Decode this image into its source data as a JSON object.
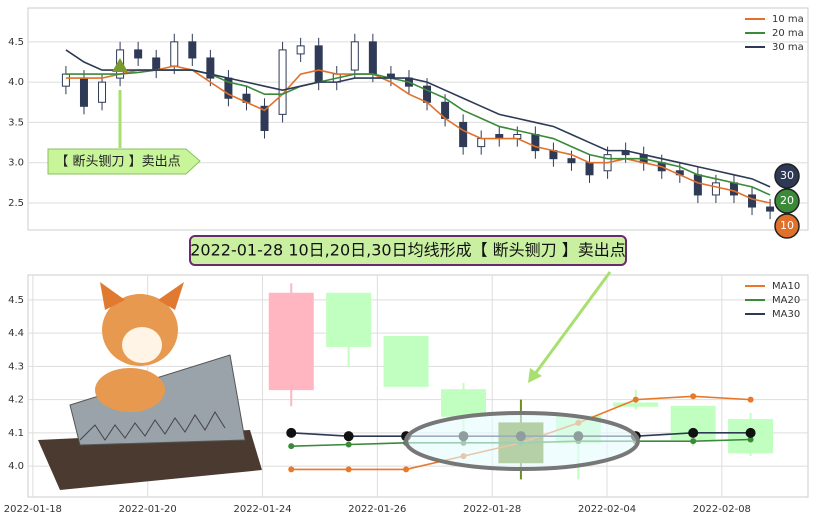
{
  "chart_data": [
    {
      "type": "candlestick",
      "x": [
        0,
        1,
        2,
        3,
        4,
        5,
        6,
        7,
        8,
        9,
        10,
        11,
        12,
        13,
        14,
        15,
        16,
        17,
        18,
        19,
        20,
        21,
        22,
        23,
        24,
        25,
        26,
        27,
        28,
        29,
        30,
        31,
        32,
        33,
        34,
        35,
        36,
        37,
        38,
        39
      ],
      "open": [
        3.95,
        4.05,
        3.75,
        4.05,
        4.4,
        4.3,
        4.2,
        4.5,
        4.3,
        4.05,
        3.85,
        3.7,
        3.6,
        4.35,
        4.45,
        4.0,
        4.15,
        4.5,
        4.1,
        4.05,
        3.95,
        3.75,
        3.5,
        3.2,
        3.35,
        3.3,
        3.35,
        3.15,
        3.05,
        3.0,
        2.9,
        3.15,
        3.1,
        3.0,
        2.9,
        2.85,
        2.6,
        2.75,
        2.6,
        2.45
      ],
      "high": [
        4.2,
        4.15,
        4.1,
        4.5,
        4.5,
        4.4,
        4.6,
        4.6,
        4.4,
        4.15,
        3.95,
        3.8,
        4.5,
        4.55,
        4.55,
        4.2,
        4.6,
        4.6,
        4.2,
        4.15,
        4.05,
        3.85,
        3.6,
        3.4,
        3.45,
        3.45,
        3.45,
        3.25,
        3.15,
        3.1,
        3.2,
        3.25,
        3.2,
        3.1,
        3.0,
        2.95,
        2.85,
        2.85,
        2.7,
        2.55
      ],
      "low": [
        3.85,
        3.6,
        3.65,
        3.95,
        4.2,
        4.05,
        4.1,
        4.2,
        3.95,
        3.7,
        3.65,
        3.3,
        3.5,
        4.25,
        3.9,
        3.9,
        4.05,
        4.0,
        3.95,
        3.85,
        3.65,
        3.45,
        3.1,
        3.1,
        3.2,
        3.2,
        3.05,
        2.95,
        2.9,
        2.75,
        2.8,
        3.0,
        2.9,
        2.8,
        2.75,
        2.5,
        2.5,
        2.5,
        2.35,
        2.3
      ],
      "close": [
        4.1,
        3.7,
        4.0,
        4.4,
        4.3,
        4.15,
        4.5,
        4.3,
        4.05,
        3.8,
        3.75,
        3.4,
        4.4,
        4.45,
        4.0,
        4.1,
        4.5,
        4.1,
        4.05,
        3.95,
        3.75,
        3.55,
        3.2,
        3.3,
        3.3,
        3.35,
        3.15,
        3.05,
        3.0,
        2.85,
        3.1,
        3.1,
        3.0,
        2.9,
        2.85,
        2.6,
        2.75,
        2.6,
        2.45,
        2.4
      ],
      "up_color": "#ffffff",
      "down_color": "#2f3a56",
      "series": [
        {
          "name": "10 ma",
          "color": "#e0702a",
          "values": [
            4.05,
            4.05,
            4.05,
            4.1,
            4.15,
            4.15,
            4.2,
            4.15,
            4.0,
            3.85,
            3.75,
            3.65,
            3.85,
            4.1,
            4.15,
            4.1,
            4.1,
            4.1,
            4.0,
            3.85,
            3.75,
            3.55,
            3.4,
            3.3,
            3.3,
            3.3,
            3.2,
            3.15,
            3.1,
            3.0,
            3.0,
            3.05,
            3.0,
            2.95,
            2.85,
            2.75,
            2.7,
            2.65,
            2.55,
            2.5
          ]
        },
        {
          "name": "20 ma",
          "color": "#3a8a3a",
          "values": [
            4.1,
            4.1,
            4.1,
            4.1,
            4.12,
            4.15,
            4.15,
            4.15,
            4.1,
            4.0,
            3.95,
            3.85,
            3.85,
            3.95,
            4.0,
            4.05,
            4.1,
            4.1,
            4.05,
            4.0,
            3.9,
            3.8,
            3.65,
            3.55,
            3.45,
            3.4,
            3.35,
            3.3,
            3.2,
            3.1,
            3.05,
            3.05,
            3.05,
            3.0,
            2.95,
            2.85,
            2.8,
            2.75,
            2.7,
            2.6
          ]
        },
        {
          "name": "30 ma",
          "color": "#2e3a55",
          "values": [
            4.4,
            4.25,
            4.15,
            4.15,
            4.15,
            4.15,
            4.15,
            4.15,
            4.1,
            4.05,
            4.0,
            3.95,
            3.9,
            3.95,
            4.0,
            4.0,
            4.05,
            4.05,
            4.05,
            4.05,
            4.0,
            3.9,
            3.8,
            3.7,
            3.6,
            3.55,
            3.5,
            3.45,
            3.35,
            3.25,
            3.15,
            3.15,
            3.1,
            3.05,
            3.0,
            2.95,
            2.9,
            2.85,
            2.8,
            2.7
          ]
        }
      ],
      "xlim": [
        -2.1,
        41.1
      ],
      "ylim": [
        2.165,
        4.92
      ],
      "yticks": [
        2.5,
        {
          "value": 3,
          "label": "3.0"
        },
        3.5,
        {
          "value": 4,
          "label": "4.0"
        },
        4.5
      ],
      "grid": true,
      "legend": "upper right",
      "annotation": "【 断头铡刀 】卖出点",
      "end_labels": [
        "30",
        "20",
        "10"
      ]
    },
    {
      "type": "candlestick",
      "title": "2022-01-28 10日,20日,30日均线形成【 断头铡刀 】卖出点",
      "x": [
        4.5,
        5.5,
        6.5,
        7.5,
        8.5,
        9.5,
        10.5,
        11.5,
        12.5
      ],
      "open": [
        4.23,
        4.52,
        4.39,
        4.23,
        4.13,
        4.15,
        4.19,
        4.18,
        4.14
      ],
      "high": [
        4.55,
        4.52,
        4.39,
        4.25,
        4.2,
        4.15,
        4.23,
        4.18,
        4.16
      ],
      "low": [
        4.18,
        4.3,
        4.24,
        4.08,
        3.96,
        3.96,
        4.17,
        4.06,
        4.03
      ],
      "close": [
        4.52,
        4.36,
        4.24,
        4.15,
        4.01,
        4.07,
        4.18,
        4.08,
        4.04
      ],
      "colors": [
        "#ffb6c1",
        "#c0ffc0",
        "#c0ffc0",
        "#c0ffc0",
        "#6b8e23",
        "#c0ffc0",
        "#c0ffc0",
        "#c0ffc0",
        "#c0ffc0"
      ],
      "series": [
        {
          "name": "MA10",
          "color": "#e8782a",
          "values": [
            3.99,
            3.99,
            3.99,
            4.03,
            4.07,
            4.13,
            4.2,
            4.21,
            4.2
          ]
        },
        {
          "name": "MA20",
          "color": "#3a8a3a",
          "values": [
            4.06,
            4.065,
            4.07,
            4.07,
            4.07,
            4.075,
            4.075,
            4.075,
            4.08
          ]
        },
        {
          "name": "MA30",
          "color": "#2e3a55",
          "values": [
            4.1,
            4.09,
            4.09,
            4.09,
            4.09,
            4.09,
            4.09,
            4.1,
            4.1
          ]
        }
      ],
      "xlim": [
        -0.05,
        13.5
      ],
      "ylim": [
        3.907,
        4.575
      ],
      "xticks": [
        {
          "value": 0,
          "label": "2022-01-18"
        },
        {
          "value": 2,
          "label": "2022-01-20"
        },
        {
          "value": 4,
          "label": "2022-01-24"
        },
        {
          "value": 6,
          "label": "2022-01-26"
        },
        {
          "value": 8,
          "label": "2022-01-28"
        },
        {
          "value": 10,
          "label": "2022-02-04"
        },
        {
          "value": 12,
          "label": "2022-02-08"
        }
      ],
      "yticks": [
        {
          "value": 4,
          "label": "4.0"
        },
        4.1,
        4.2,
        4.3,
        4.4,
        4.5
      ],
      "grid": true,
      "legend": "upper right"
    }
  ]
}
